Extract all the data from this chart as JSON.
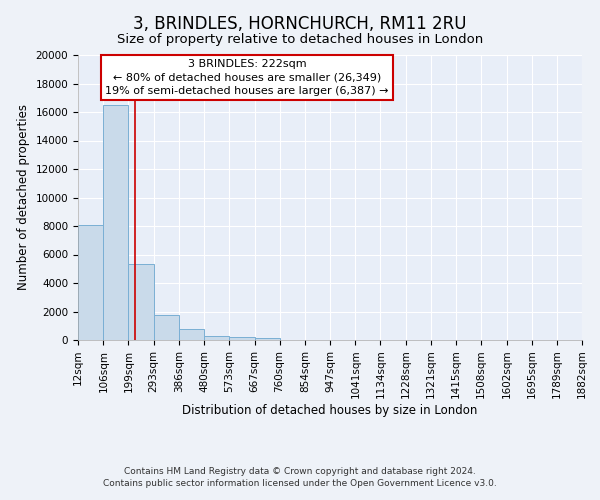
{
  "title": "3, BRINDLES, HORNCHURCH, RM11 2RU",
  "subtitle": "Size of property relative to detached houses in London",
  "xlabel": "Distribution of detached houses by size in London",
  "ylabel": "Number of detached properties",
  "bar_values": [
    8100,
    16500,
    5300,
    1750,
    750,
    300,
    200,
    150,
    0,
    0,
    0,
    0,
    0,
    0,
    0,
    0,
    0,
    0,
    0,
    0
  ],
  "bin_edges": [
    12,
    106,
    199,
    293,
    386,
    480,
    573,
    667,
    760,
    854,
    947,
    1041,
    1134,
    1228,
    1321,
    1415,
    1508,
    1602,
    1695,
    1789,
    1882
  ],
  "bin_labels": [
    "12sqm",
    "106sqm",
    "199sqm",
    "293sqm",
    "386sqm",
    "480sqm",
    "573sqm",
    "667sqm",
    "760sqm",
    "854sqm",
    "947sqm",
    "1041sqm",
    "1134sqm",
    "1228sqm",
    "1321sqm",
    "1415sqm",
    "1508sqm",
    "1602sqm",
    "1695sqm",
    "1789sqm",
    "1882sqm"
  ],
  "bar_color": "#c9daea",
  "bar_edge_color": "#7aafd4",
  "red_line_x": 222,
  "annotation_line1": "3 BRINDLES: 222sqm",
  "annotation_line2": "← 80% of detached houses are smaller (26,349)",
  "annotation_line3": "19% of semi-detached houses are larger (6,387) →",
  "annotation_box_facecolor": "#ffffff",
  "annotation_box_edgecolor": "#cc0000",
  "ylim": [
    0,
    20000
  ],
  "yticks": [
    0,
    2000,
    4000,
    6000,
    8000,
    10000,
    12000,
    14000,
    16000,
    18000,
    20000
  ],
  "footer1": "Contains HM Land Registry data © Crown copyright and database right 2024.",
  "footer2": "Contains public sector information licensed under the Open Government Licence v3.0.",
  "bg_color": "#eef2f8",
  "plot_bg_color": "#e8eef8",
  "grid_color": "#ffffff",
  "title_fontsize": 12,
  "subtitle_fontsize": 9.5,
  "axis_label_fontsize": 8.5,
  "tick_fontsize": 7.5,
  "annotation_fontsize": 8,
  "footer_fontsize": 6.5
}
